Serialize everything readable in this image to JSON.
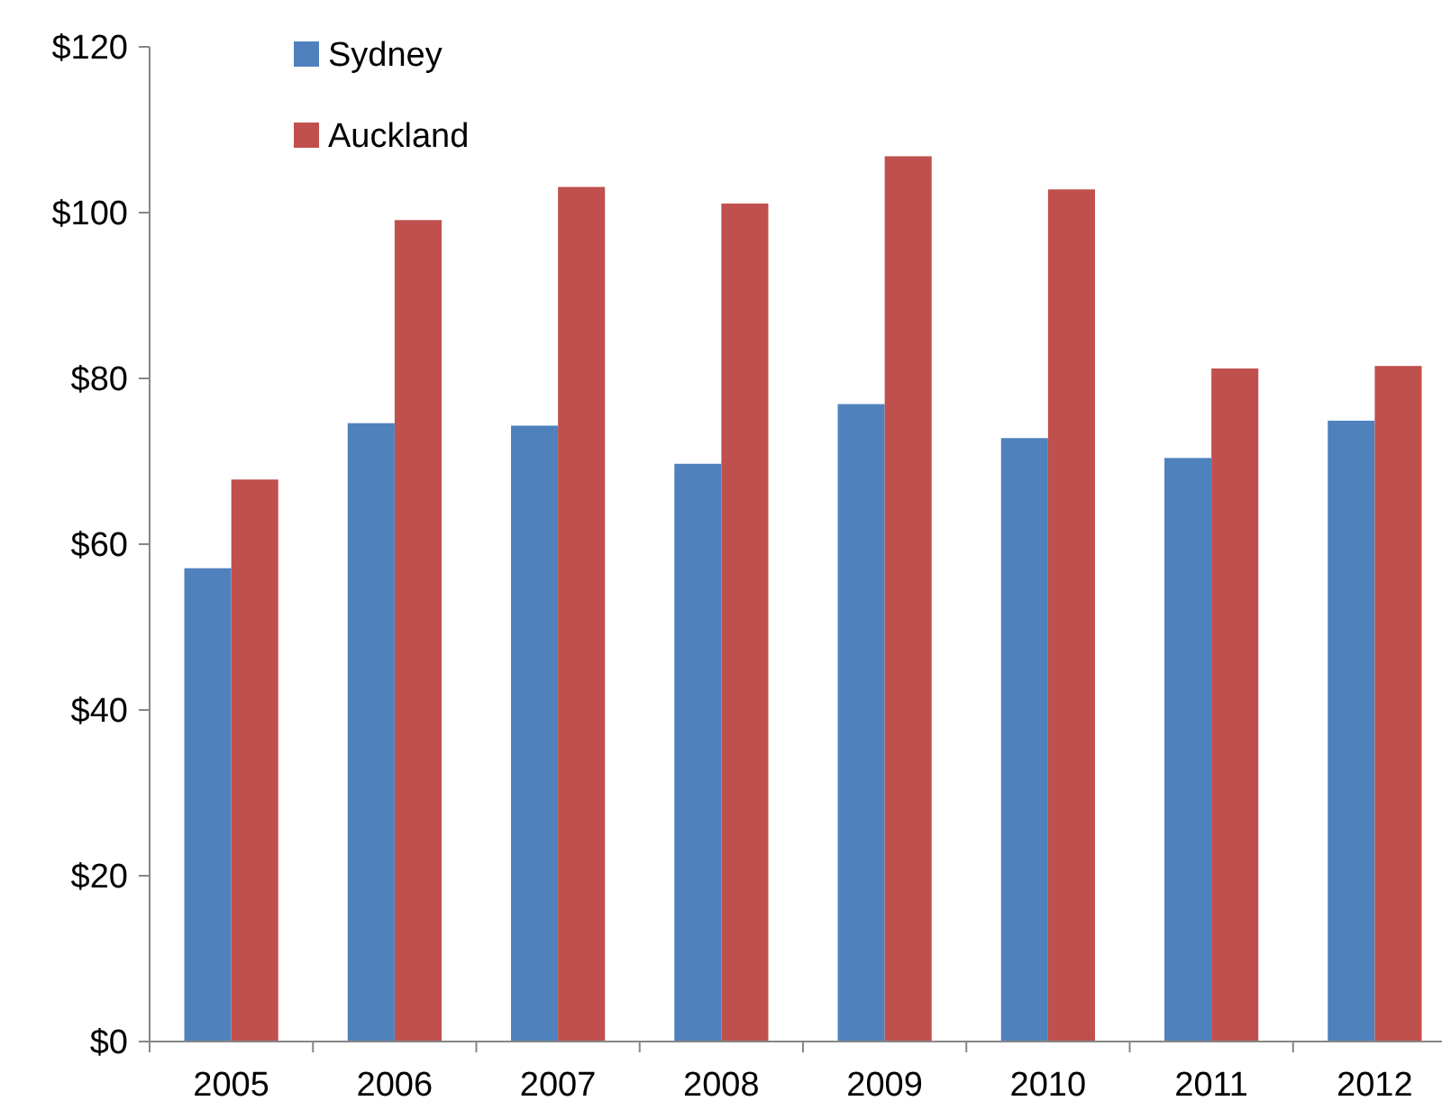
{
  "chart_data": {
    "type": "bar",
    "categories": [
      "2005",
      "2006",
      "2007",
      "2008",
      "2009",
      "2010",
      "2011",
      "2012"
    ],
    "series": [
      {
        "name": "Sydney",
        "color": "#4f81bd",
        "values": [
          57.1,
          74.6,
          74.3,
          69.7,
          76.9,
          72.8,
          70.4,
          74.9
        ]
      },
      {
        "name": "Auckland",
        "color": "#c0504d",
        "values": [
          67.8,
          99.1,
          103.1,
          101.1,
          106.8,
          102.8,
          81.2,
          81.5
        ]
      }
    ],
    "ylim": [
      0,
      120
    ],
    "yticks": [
      {
        "value": 0,
        "label": "$0"
      },
      {
        "value": 20,
        "label": "$20"
      },
      {
        "value": 40,
        "label": "$40"
      },
      {
        "value": 60,
        "label": "$60"
      },
      {
        "value": 80,
        "label": "$80"
      },
      {
        "value": 100,
        "label": "$100"
      },
      {
        "value": 120,
        "label": "$120"
      }
    ],
    "grid": false,
    "legend": "top left"
  }
}
